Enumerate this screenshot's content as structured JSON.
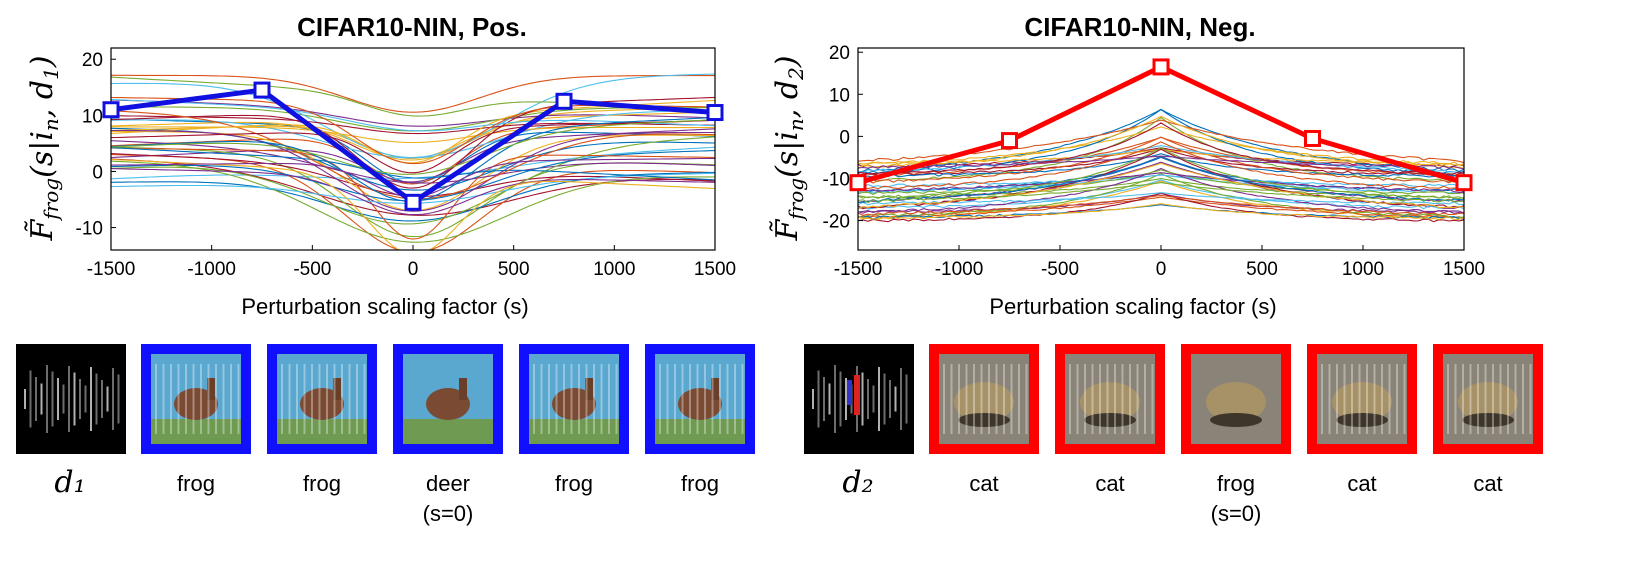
{
  "chart_data": [
    {
      "type": "line",
      "title": "CIFAR10-NIN, Pos.",
      "xlabel": "Perturbation scaling factor (s)",
      "ylabel": "F̃frog(s|in, d1)",
      "xlim": [
        -1500,
        1500
      ],
      "ylim": [
        -14,
        22
      ],
      "xticks": [
        -1500,
        -1000,
        -500,
        0,
        500,
        1000,
        1500
      ],
      "yticks": [
        -10,
        0,
        10,
        20
      ],
      "background_curves": "many thin colored curves, mostly dipping around s=0",
      "highlight": {
        "color": "#1010e0",
        "x": [
          -1500,
          -750,
          0,
          750,
          1500
        ],
        "y": [
          11,
          14.5,
          -5.5,
          12.5,
          10.5
        ]
      }
    },
    {
      "type": "line",
      "title": "CIFAR10-NIN, Neg.",
      "xlabel": "Perturbation scaling factor (s)",
      "ylabel": "F̃frog(s|in, d2)",
      "xlim": [
        -1500,
        1500
      ],
      "ylim": [
        -27,
        21
      ],
      "xticks": [
        -1500,
        -1000,
        -500,
        0,
        500,
        1000,
        1500
      ],
      "yticks": [
        -20,
        -10,
        0,
        10,
        20
      ],
      "background_curves": "many thin colored curves, mostly peaking around s=0",
      "highlight": {
        "color": "#ff0000",
        "x": [
          -1500,
          -750,
          0,
          750,
          1500
        ],
        "y": [
          -11,
          -1,
          16.5,
          -0.5,
          -11
        ]
      }
    }
  ],
  "panels": [
    {
      "direction_label": "d₁",
      "frame_color": "#1010ff",
      "captions": [
        {
          "line1": "frog",
          "line2": ""
        },
        {
          "line1": "frog",
          "line2": ""
        },
        {
          "line1": "deer",
          "line2": "(s=0)"
        },
        {
          "line1": "frog",
          "line2": ""
        },
        {
          "line1": "frog",
          "line2": ""
        }
      ]
    },
    {
      "direction_label": "d₂",
      "frame_color": "#ff0000",
      "captions": [
        {
          "line1": "cat",
          "line2": ""
        },
        {
          "line1": "cat",
          "line2": ""
        },
        {
          "line1": "frog",
          "line2": "(s=0)"
        },
        {
          "line1": "cat",
          "line2": ""
        },
        {
          "line1": "cat",
          "line2": ""
        }
      ]
    }
  ]
}
